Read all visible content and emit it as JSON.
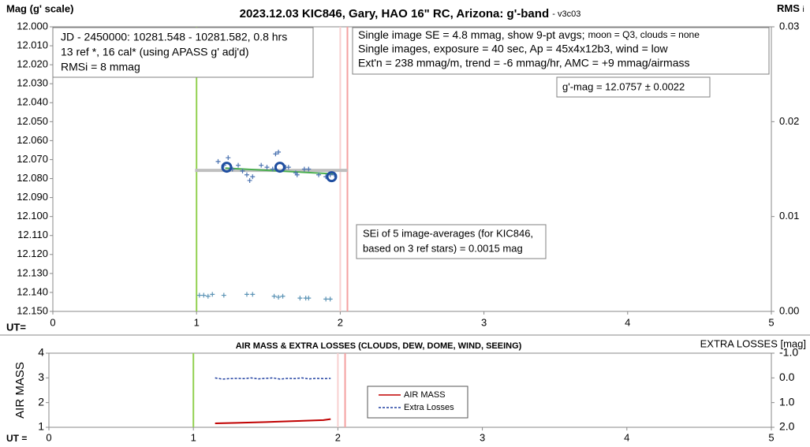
{
  "chart_data": [
    {
      "type": "scatter",
      "title": "2023.12.03 KIC846, Gary, HAO 16\" RC, Arizona: g'-band",
      "title_suffix": "- v3c03",
      "ylabel": "Mag (g' scale)",
      "y2label": "RMS",
      "y2label_suffix": "i",
      "xlabel": "UT=",
      "xlim": [
        0,
        5
      ],
      "xticks": [
        0,
        1,
        2,
        3,
        4,
        5
      ],
      "ylim": [
        12.15,
        12.0
      ],
      "yticks": [
        {
          "value": 12.0,
          "label": "12.000"
        },
        {
          "value": 12.01,
          "label": "12.010"
        },
        {
          "value": 12.02,
          "label": "12.020"
        },
        {
          "value": 12.03,
          "label": "12.030"
        },
        {
          "value": 12.04,
          "label": "12.040"
        },
        {
          "value": 12.05,
          "label": "12.050"
        },
        {
          "value": 12.06,
          "label": "12.060"
        },
        {
          "value": 12.07,
          "label": "12.070"
        },
        {
          "value": 12.08,
          "label": "12.080"
        },
        {
          "value": 12.09,
          "label": "12.090"
        },
        {
          "value": 12.1,
          "label": "12.100"
        },
        {
          "value": 12.11,
          "label": "12.110"
        },
        {
          "value": 12.12,
          "label": "12.120"
        },
        {
          "value": 12.13,
          "label": "12.130"
        },
        {
          "value": 12.14,
          "label": "12.140"
        },
        {
          "value": 12.15,
          "label": "12.150"
        }
      ],
      "y2lim": [
        0,
        0.03
      ],
      "y2ticks": [
        {
          "value": 0.03,
          "label": "0.03"
        },
        {
          "value": 0.02,
          "label": "0.02"
        },
        {
          "value": 0.01,
          "label": "0.01"
        },
        {
          "value": 0,
          "label": "0.00"
        }
      ],
      "vlines": [
        {
          "x": 1,
          "color": "#92d050"
        },
        {
          "x": 2.0,
          "color": "#f8d0d0"
        },
        {
          "x": 2.05,
          "color": "#f4a0a0"
        }
      ],
      "series": [
        {
          "style": "model",
          "color": "#bfbfbf",
          "x": [
            0.99,
            2.05
          ],
          "values": [
            12.0757,
            12.0757
          ]
        },
        {
          "style": "line",
          "color": "#4caf50",
          "x": [
            1.2,
            1.95
          ],
          "values": [
            12.0745,
            12.0775
          ]
        },
        {
          "style": "plus",
          "color": "#4a72b0",
          "x": [
            1.15,
            1.19,
            1.22,
            1.25,
            1.29,
            1.32,
            1.35,
            1.37,
            1.39,
            1.45,
            1.49,
            1.53,
            1.55,
            1.57,
            1.62,
            1.64,
            1.69,
            1.7,
            1.75,
            1.78,
            1.85,
            1.9,
            1.93,
            1.96
          ],
          "values": [
            12.071,
            12.073,
            12.069,
            12.075,
            12.073,
            12.076,
            12.078,
            12.081,
            12.079,
            12.073,
            12.074,
            12.075,
            12.067,
            12.066,
            12.074,
            12.074,
            12.077,
            12.078,
            12.075,
            12.075,
            12.078,
            12.079,
            12.078,
            12.078
          ]
        },
        {
          "style": "circle",
          "color": "#1f4ea0",
          "x": [
            1.21,
            1.58,
            1.94
          ],
          "values": [
            12.074,
            12.074,
            12.079
          ]
        },
        {
          "style": "plus",
          "axis": "y2",
          "color": "#5b93b5",
          "x": [
            1.02,
            1.05,
            1.08,
            1.11,
            1.19,
            1.35,
            1.39,
            1.54,
            1.57,
            1.6,
            1.72,
            1.76,
            1.78,
            1.9,
            1.93
          ],
          "values": [
            0.0017,
            0.0017,
            0.0016,
            0.0018,
            0.0017,
            0.0018,
            0.0018,
            0.0016,
            0.0015,
            0.0016,
            0.0014,
            0.0014,
            0.0014,
            0.0013,
            0.0013
          ]
        }
      ],
      "annotations": {
        "box1": [
          "JD - 2450000: 10281.548 - 10281.582, 0.8 hrs",
          "13 ref *, 16 cal* (using APASS g' adj'd)",
          "RMSi = 8 mmag"
        ],
        "box2": [
          "Single image SE = 4.8 mmag, show  9-pt avgs;",
          "moon = Q3, clouds = none",
          "Single images, exposure = 40 sec, Ap = 45x4x12b3, wind = low",
          "Ext'n = 238 mmag/m, trend = -6 mmag/hr, AMC = +9 mmag/airmass"
        ],
        "box3": [
          "g'-mag = 12.0757 ± 0.0022"
        ],
        "box4": [
          "SEi of 5 image-averages (for KIC846,",
          "based on 3 ref stars) = 0.0015 mag"
        ]
      }
    },
    {
      "type": "line",
      "title": "AIR MASS & EXTRA LOSSES (CLOUDS, DEW, DOME, WIND, SEEING)",
      "ylabel": "AIR MASS",
      "y2label": "EXTRA LOSSES [mag]",
      "xlabel": "UT =",
      "xlim": [
        0,
        5
      ],
      "xticks": [
        0,
        1,
        2,
        3,
        4,
        5
      ],
      "ylim": [
        1,
        4
      ],
      "yticks": [
        1,
        2,
        3,
        4
      ],
      "y2lim": [
        2.0,
        -1.0
      ],
      "y2ticks": [
        {
          "value": -1.0,
          "label": "-1.0"
        },
        {
          "value": 0,
          "label": "0.0"
        },
        {
          "value": 1.0,
          "label": "1.0"
        },
        {
          "value": 2.0,
          "label": "2.0"
        }
      ],
      "vlines": [
        {
          "x": 1,
          "color": "#92d050"
        },
        {
          "x": 2.0,
          "color": "#f8d0d0"
        },
        {
          "x": 2.05,
          "color": "#f4a0a0"
        }
      ],
      "series": [
        {
          "name": "AIR MASS",
          "style": "line",
          "color": "#c00000",
          "x": [
            1.15,
            1.3,
            1.5,
            1.7,
            1.9,
            1.95
          ],
          "values": [
            1.16,
            1.18,
            1.21,
            1.25,
            1.29,
            1.33
          ]
        },
        {
          "name": "Extra Losses",
          "style": "dashed",
          "axis": "y2",
          "color": "#1f3fa0",
          "x": [
            1.15,
            1.2,
            1.25,
            1.3,
            1.35,
            1.4,
            1.45,
            1.5,
            1.55,
            1.6,
            1.65,
            1.7,
            1.75,
            1.8,
            1.85,
            1.9,
            1.95
          ],
          "values": [
            0.0,
            0.05,
            0.03,
            0.02,
            0.03,
            0.0,
            0.04,
            0.02,
            0.0,
            0.05,
            0.02,
            0.03,
            0.0,
            0.04,
            0.02,
            0.03,
            0.02
          ]
        }
      ]
    }
  ]
}
